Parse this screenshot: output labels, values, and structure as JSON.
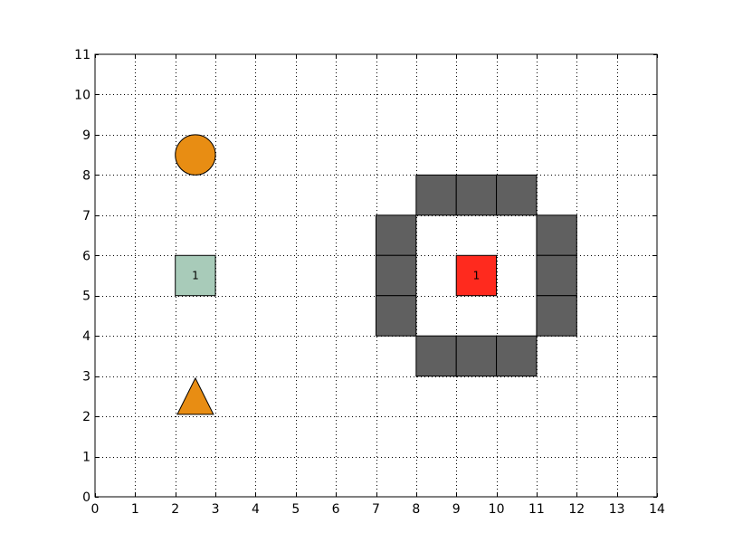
{
  "chart_data": {
    "type": "scatter",
    "title": "",
    "xlabel": "",
    "ylabel": "",
    "xlim": [
      0,
      14
    ],
    "ylim": [
      0,
      11
    ],
    "x_ticks": [
      0,
      1,
      2,
      3,
      4,
      5,
      6,
      7,
      8,
      9,
      10,
      11,
      12,
      13,
      14
    ],
    "y_ticks": [
      0,
      1,
      2,
      3,
      4,
      5,
      6,
      7,
      8,
      9,
      10,
      11
    ],
    "grid": true,
    "legend": "none",
    "walls": {
      "color": "#606060",
      "cells": [
        [
          8,
          7
        ],
        [
          9,
          7
        ],
        [
          10,
          7
        ],
        [
          7,
          6
        ],
        [
          7,
          5
        ],
        [
          7,
          4
        ],
        [
          11,
          6
        ],
        [
          11,
          5
        ],
        [
          11,
          4
        ],
        [
          8,
          3
        ],
        [
          9,
          3
        ],
        [
          10,
          3
        ]
      ]
    },
    "tiles": [
      {
        "x": 2,
        "y": 5,
        "label": "1",
        "color": "#a8cbb9"
      },
      {
        "x": 9,
        "y": 5,
        "label": "1",
        "color": "#ff2a1e"
      }
    ],
    "circles": [
      {
        "x": 2.5,
        "y": 8.5,
        "r": 0.5,
        "color": "#e88d13"
      }
    ],
    "triangles": [
      {
        "x": 2.5,
        "y": 2.5,
        "color": "#e88d13"
      }
    ]
  }
}
